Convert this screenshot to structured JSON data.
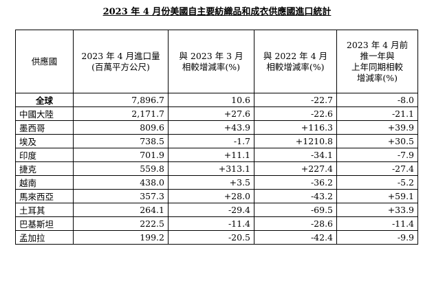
{
  "title": "2023 年 4 月份美國自主要紡織品和成衣供應國進口統計",
  "table": {
    "headers": {
      "country": [
        "供應國"
      ],
      "imports": [
        "2023 年 4 月進口量",
        "(百萬平方公尺)"
      ],
      "vs_mar_2023": [
        "與 2023 年 3 月",
        "相較增減率(%)"
      ],
      "vs_apr_2022": [
        "與 2022 年 4 月",
        "相較增減率(%)"
      ],
      "ytd": [
        "2023 年 4 月前",
        "推一年與",
        "上年同期相較",
        "增減率(%)"
      ]
    },
    "rows": [
      {
        "country": "全球",
        "imports": "7,896.7",
        "vs_mar_2023": "10.6",
        "vs_apr_2022": "-22.7",
        "ytd": "-8.0"
      },
      {
        "country": "中國大陸",
        "imports": "2,171.7",
        "vs_mar_2023": "+27.6",
        "vs_apr_2022": "-22.6",
        "ytd": "-21.1"
      },
      {
        "country": "墨西哥",
        "imports": "809.6",
        "vs_mar_2023": "+43.9",
        "vs_apr_2022": "+116.3",
        "ytd": "+39.9"
      },
      {
        "country": "埃及",
        "imports": "738.5",
        "vs_mar_2023": "-1.7",
        "vs_apr_2022": "+1210.8",
        "ytd": "+30.5"
      },
      {
        "country": "印度",
        "imports": "701.9",
        "vs_mar_2023": "+11.1",
        "vs_apr_2022": "-34.1",
        "ytd": "-7.9"
      },
      {
        "country": "捷克",
        "imports": "559.8",
        "vs_mar_2023": "+313.1",
        "vs_apr_2022": "+227.4",
        "ytd": "-27.4"
      },
      {
        "country": "越南",
        "imports": "438.0",
        "vs_mar_2023": "+3.5",
        "vs_apr_2022": "-36.2",
        "ytd": "-5.2"
      },
      {
        "country": "馬來西亞",
        "imports": "357.3",
        "vs_mar_2023": "+28.0",
        "vs_apr_2022": "-43.2",
        "ytd": "+59.1"
      },
      {
        "country": "土耳其",
        "imports": "264.1",
        "vs_mar_2023": "-29.4",
        "vs_apr_2022": "-69.5",
        "ytd": "+33.9"
      },
      {
        "country": "巴基斯坦",
        "imports": "222.5",
        "vs_mar_2023": "-11.4",
        "vs_apr_2022": "-28.6",
        "ytd": "-11.4"
      },
      {
        "country": "孟加拉",
        "imports": "199.2",
        "vs_mar_2023": "-20.5",
        "vs_apr_2022": "-42.4",
        "ytd": "-9.9"
      }
    ]
  }
}
